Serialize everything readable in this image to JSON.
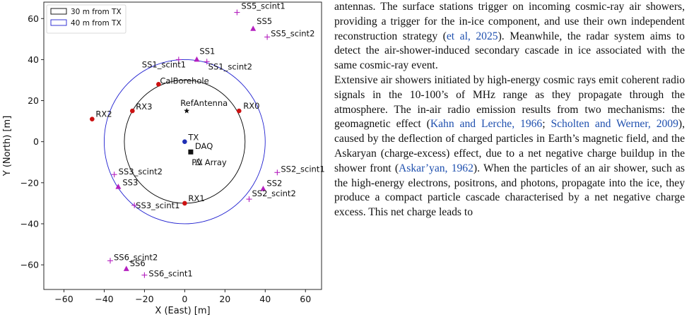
{
  "chart_data": {
    "type": "scatter",
    "xlabel": "X (East) [m]",
    "ylabel": "Y (North) [m]",
    "xlim": [
      -70,
      68
    ],
    "ylim": [
      -72,
      68
    ],
    "xticks": [
      -60,
      -40,
      -20,
      0,
      20,
      40,
      60
    ],
    "yticks": [
      -60,
      -40,
      -20,
      0,
      20,
      40,
      60
    ],
    "grid": false,
    "legend_position": "top-left",
    "legend": [
      {
        "label": "30 m from TX",
        "color": "#000000",
        "radius": 30
      },
      {
        "label": "40 m from TX",
        "color": "#1f1fd0",
        "radius": 40
      }
    ],
    "circle_center": {
      "x": 0,
      "y": 0
    },
    "points": [
      {
        "label": "SS5_scint1",
        "x": 26,
        "y": 63,
        "marker": "plus",
        "color": "#b41fbf"
      },
      {
        "label": "SS5",
        "x": 34,
        "y": 55,
        "marker": "triangle",
        "color": "#b41fbf"
      },
      {
        "label": "SS5_scint2",
        "x": 41,
        "y": 51,
        "marker": "plus",
        "color": "#b41fbf"
      },
      {
        "label": "SS1",
        "x": 6,
        "y": 40,
        "marker": "triangle",
        "color": "#b41fbf"
      },
      {
        "label": "SS1_scint1",
        "x": -3,
        "y": 40,
        "marker": "plus",
        "color": "#b41fbf"
      },
      {
        "label": "SS1_scint2",
        "x": 11,
        "y": 39,
        "marker": "plus",
        "color": "#b41fbf"
      },
      {
        "label": "CalBorehole",
        "x": -13,
        "y": 28,
        "marker": "dot",
        "color": "#cc1111"
      },
      {
        "label": "RefAntenna",
        "x": 1,
        "y": 15,
        "marker": "star",
        "color": "#111111"
      },
      {
        "label": "RX0",
        "x": 27,
        "y": 15,
        "marker": "dot",
        "color": "#cc1111"
      },
      {
        "label": "RX3",
        "x": -26,
        "y": 15,
        "marker": "dot",
        "color": "#cc1111"
      },
      {
        "label": "RX2",
        "x": -46,
        "y": 11,
        "marker": "dot",
        "color": "#cc1111"
      },
      {
        "label": "TX",
        "x": 0,
        "y": 0,
        "marker": "dot",
        "color": "#1f2fb4"
      },
      {
        "label": "DAQ",
        "x": 3,
        "y": -5,
        "marker": "square",
        "color": "#111111"
      },
      {
        "label": "PV Array",
        "x": 7,
        "y": -10,
        "marker": "triangle-open",
        "color": "#111111"
      },
      {
        "label": "SS2_scint1",
        "x": 46,
        "y": -15,
        "marker": "plus",
        "color": "#b41fbf"
      },
      {
        "label": "SS3_scint2",
        "x": -35,
        "y": -16,
        "marker": "plus",
        "color": "#b41fbf"
      },
      {
        "label": "SS3",
        "x": -33,
        "y": -22,
        "marker": "triangle",
        "color": "#b41fbf"
      },
      {
        "label": "SS2",
        "x": 39,
        "y": -23,
        "marker": "triangle",
        "color": "#b41fbf"
      },
      {
        "label": "SS2_scint2",
        "x": 32,
        "y": -28,
        "marker": "plus",
        "color": "#b41fbf"
      },
      {
        "label": "RX1",
        "x": 0,
        "y": -30,
        "marker": "dot",
        "color": "#cc1111"
      },
      {
        "label": "SS3_scint1",
        "x": -25,
        "y": -31,
        "marker": "plus",
        "color": "#b41fbf"
      },
      {
        "label": "SS6_scint2",
        "x": -37,
        "y": -58,
        "marker": "plus",
        "color": "#b41fbf"
      },
      {
        "label": "SS6",
        "x": -29,
        "y": -62,
        "marker": "triangle",
        "color": "#b41fbf"
      },
      {
        "label": "SS6_scint1",
        "x": -20,
        "y": -65,
        "marker": "plus",
        "color": "#b41fbf"
      }
    ]
  },
  "paragraph_1": [
    {
      "t": "antennas. The surface stations trigger on incoming cosmic-ray air showers, providing a trigger for the in-ice component, and use their own independent reconstruction strategy ("
    },
    {
      "t": "et al, 2025",
      "cite": true
    },
    {
      "t": "). Meanwhile, the radar system aims to detect the air-shower-induced secondary cascade in ice associated with the same cosmic-ray event."
    }
  ],
  "paragraph_2": [
    {
      "t": "Extensive air showers initiated by high-energy cosmic rays emit coherent radio signals in the 10-100’s of MHz range as they propagate through the atmosphere. The in-air radio emission results from two mechanisms: the geomagnetic effect ("
    },
    {
      "t": "Kahn and Lerche, 1966",
      "cite": true
    },
    {
      "t": "; "
    },
    {
      "t": "Scholten and Werner, 2009",
      "cite": true
    },
    {
      "t": "), caused by the deflection of charged particles in Earth’s magnetic field, and the Askaryan (charge-excess) effect, due to a net negative charge buildup in the shower front ("
    },
    {
      "t": "Askar’yan, 1962",
      "cite": true
    },
    {
      "t": "). When the particles of an air shower, such as the high-energy electrons, positrons, and photons, propagate into the ice, they produce a compact particle cascade characterised by a net negative charge excess. This net charge leads to"
    }
  ]
}
